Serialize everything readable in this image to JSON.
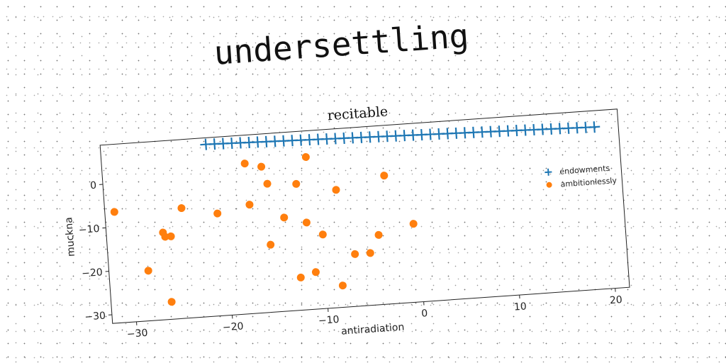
{
  "heading": "undersettling",
  "chart_data": {
    "type": "scatter",
    "title": "recitable",
    "xlabel": "antiradiation",
    "ylabel": "muckna",
    "xlim": [
      -32.5,
      21.5
    ],
    "ylim": [
      -32,
      9
    ],
    "xticks": [
      -30,
      -20,
      -10,
      0,
      10,
      20
    ],
    "yticks": [
      0,
      -10,
      -20,
      -30
    ],
    "grid": false,
    "legend": "center-right",
    "series": [
      {
        "name": "endowments",
        "marker": "plus",
        "color": "#1f77b4",
        "x": [
          -21.5,
          -20.6,
          -19.7,
          -18.8,
          -17.9,
          -17,
          -16.1,
          -15.2,
          -14.3,
          -13.4,
          -12.5,
          -11.6,
          -10.7,
          -9.8,
          -8.9,
          -8,
          -7.1,
          -6.2,
          -5.3,
          -4.4,
          -3.5,
          -2.6,
          -1.7,
          -0.8,
          0.1,
          1,
          1.9,
          2.8,
          3.7,
          4.6,
          5.5,
          6.4,
          7.3,
          8.2,
          9.1,
          10,
          10.9,
          11.8,
          12.7,
          13.6,
          14.5,
          15.4,
          16.3,
          17.2,
          18.1,
          19
        ],
        "y": [
          7.5,
          7.45,
          7.4,
          7.35,
          7.3,
          7.25,
          7.2,
          7.15,
          7.1,
          7.05,
          7,
          6.95,
          6.9,
          6.85,
          6.8,
          6.75,
          6.7,
          6.65,
          6.6,
          6.55,
          6.5,
          6.45,
          6.4,
          6.35,
          6.3,
          6.25,
          6.2,
          6.15,
          6.1,
          6.05,
          6,
          5.95,
          5.9,
          5.85,
          5.8,
          5.75,
          5.7,
          5.65,
          5.6,
          5.55,
          5.5,
          5.45,
          5.4,
          5.35,
          5.3,
          5.25
        ]
      },
      {
        "name": "ambitionlessly",
        "marker": "circle",
        "color": "#ff7f0e",
        "x": [
          -31.5,
          -28.4,
          -26.6,
          -26.4,
          -25.8,
          -26.2,
          -24.5,
          -20.8,
          -17.6,
          -17.4,
          -15.9,
          -15.4,
          -15.5,
          -13.9,
          -12.6,
          -12.4,
          -11.2,
          -11.6,
          -11,
          -10,
          -8.3,
          -8.3,
          -6.8,
          -5.2,
          -4.2,
          -3.2,
          -0.5
        ],
        "y": [
          -6.5,
          -20.5,
          -12,
          -13,
          -13,
          -28,
          -6.7,
          -8.5,
          2.5,
          -7,
          1.5,
          -2.5,
          -16.5,
          -10.5,
          -24.5,
          -3,
          3,
          -12,
          -23.5,
          -15,
          -5,
          -27,
          -20,
          -20,
          -16,
          -2.5,
          -14
        ]
      }
    ]
  }
}
